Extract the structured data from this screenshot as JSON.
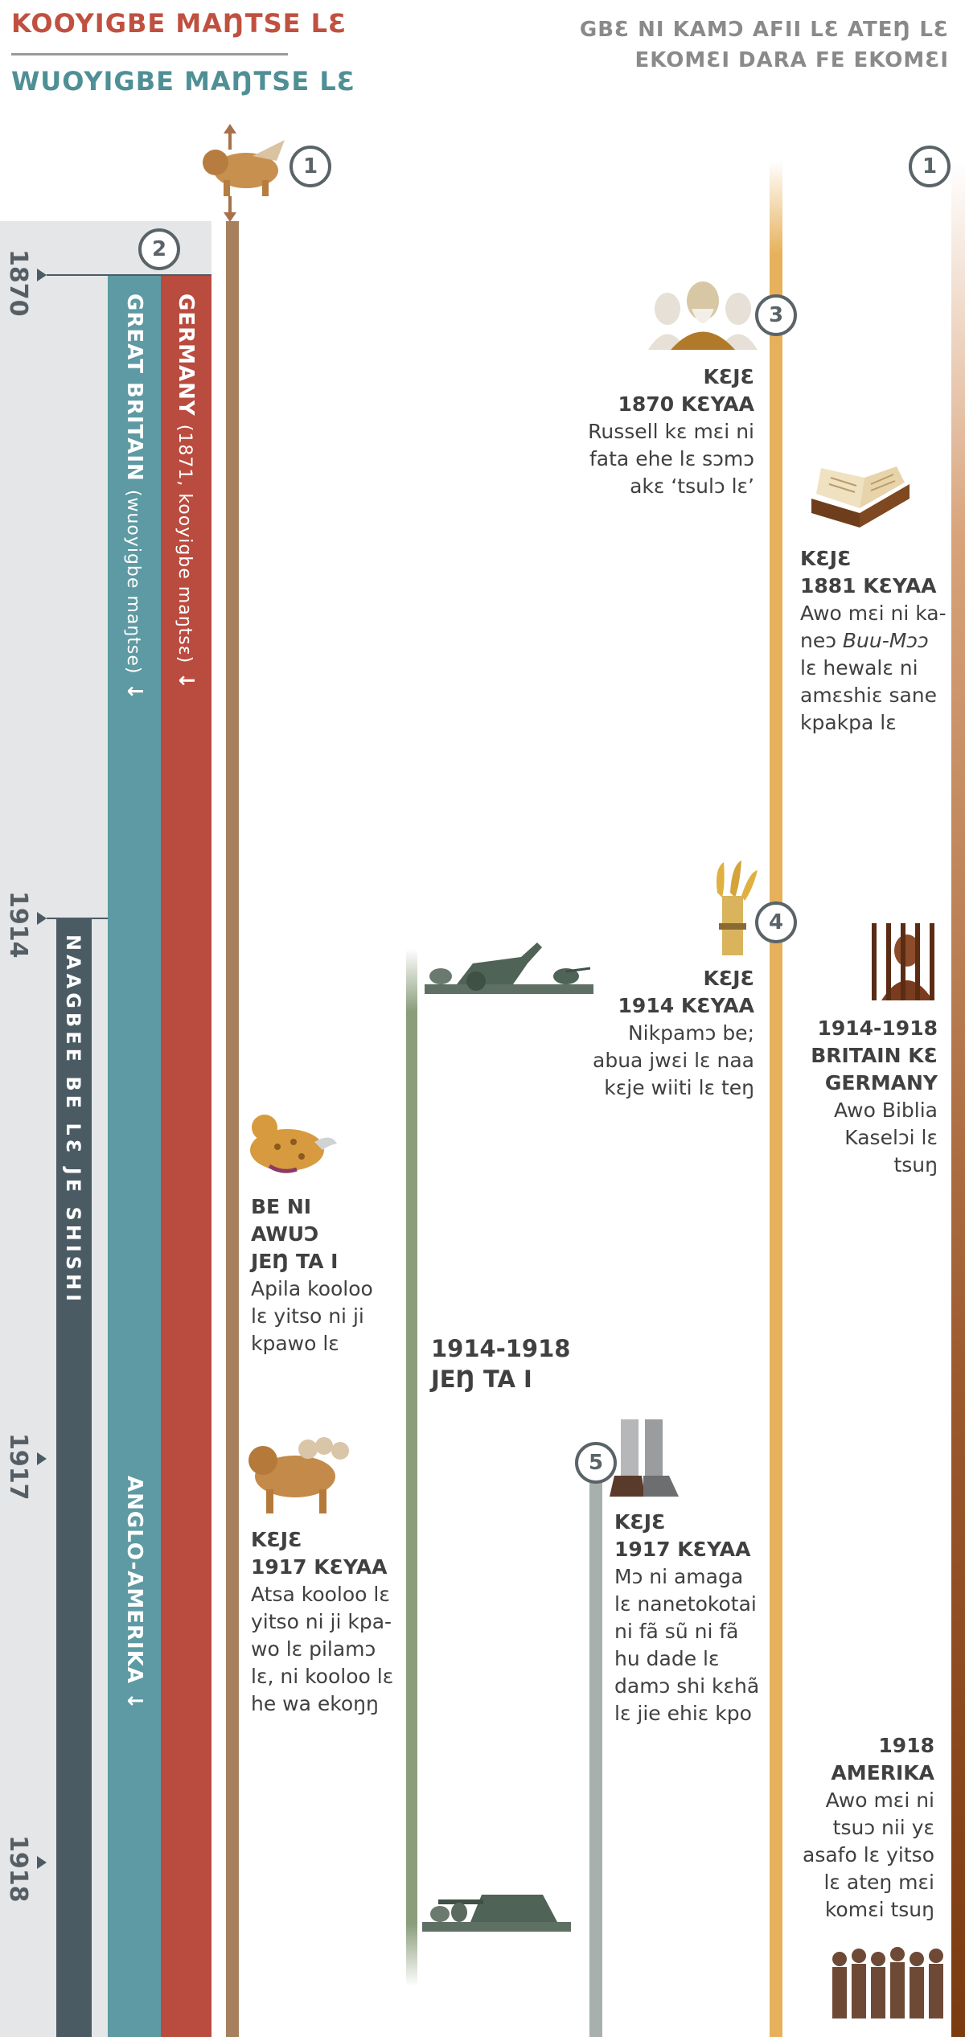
{
  "header": {
    "title_left_1": "KOOYIGBE MAŊTSE LƐ",
    "title_left_2": "WUOYIGBE MAŊTSE LƐ",
    "title_right_line1": "GBƐ NI KAMƆ AFII LƐ ATEŊ LƐ",
    "title_right_line2": "EKOMƐI DARA FE EKOMƐI"
  },
  "years": [
    "1870",
    "1914",
    "1917",
    "1918"
  ],
  "bars": {
    "great_britain": "GREAT BRITAIN",
    "great_britain_note": "(wuoyigbe maŋtse)",
    "germany": "GERMANY",
    "germany_note": "(1871, kooyigbe maŋtsɛ)",
    "naagbee": "NAAGBEE BE LƐ JE SHISHI",
    "anglo": "ANGLO-AMERIKA",
    "arrow": "↓"
  },
  "markers": {
    "m1a": "1",
    "m1b": "1",
    "m2": "2",
    "m3": "3",
    "m4": "4",
    "m5": "5"
  },
  "events": {
    "russell": {
      "head1": "KƐJƐ",
      "head2": "1870 KƐYAA",
      "l1": "Russell kɛ mɛi ni",
      "l2": "fata ehe lɛ sɔmɔ",
      "l3": "akɛ ‘tsulɔ lɛ’"
    },
    "bible": {
      "head1": "KƐJƐ",
      "head2": "1881 KƐYAA",
      "l1": "Awo mɛi ni ka-",
      "l2a": "neɔ ",
      "l2b": "Buu-Mɔɔ",
      "l3": "lɛ hewalɛ ni",
      "l4": "amɛshiɛ sane",
      "l5": "kpakpa lɛ"
    },
    "harvest": {
      "head1": "KƐJƐ",
      "head2": "1914 KƐYAA",
      "l1": "Nikpamɔ be;",
      "l2": "abua jwɛi lɛ naa",
      "l3": "kɛje wiiti lɛ teŋ"
    },
    "prison": {
      "head1": "1914-1918",
      "head2": "BRITAIN KƐ",
      "head3": "GERMANY",
      "l1": "Awo Biblia",
      "l2": "Kaselɔi lɛ",
      "l3": "tsuŋ"
    },
    "wound": {
      "head1": "BE NI",
      "head2": "AWUƆ",
      "head3": "JEŊ TA I",
      "l1": "Apila kooloo",
      "l2": "lɛ yitso ni ji",
      "l3": "kpawo lɛ"
    },
    "war": {
      "l1": "1914-1918",
      "l2": "JEŊ TA I"
    },
    "beast": {
      "head1": "KƐJƐ",
      "head2": "1917 KƐYAA",
      "l1": "Atsa kooloo lɛ",
      "l2": "yitso ni ji kpa-",
      "l3": "wo lɛ pilamɔ",
      "l4": "lɛ, ni kooloo lɛ",
      "l5": "he wa ekoŋŋ"
    },
    "feet": {
      "head1": "KƐJƐ",
      "head2": "1917 KƐYAA",
      "l1": "Mɔ ni amaga",
      "l2": "lɛ nanetokotai",
      "l3": "ni fã sũ ni fã",
      "l4": "hu dade lɛ",
      "l5": "damɔ shi kɛhã",
      "l6": "lɛ jie ehiɛ kpo"
    },
    "america": {
      "head1": "1918",
      "head2": "AMERIKA",
      "l1": "Awo mɛi ni",
      "l2": "tsuɔ nii yɛ",
      "l3": "asafo lɛ yitso",
      "l4": "lɛ ateŋ mɛi",
      "l5": "komɛi tsuŋ"
    }
  },
  "colors": {
    "germany": "#ba4b3f",
    "britain": "#5d9aa3",
    "naagbee": "#4b5b63",
    "main": "#a7805e",
    "war": "#8b9e7c",
    "gold": "#e6b15a",
    "brown": "#7b3b10"
  }
}
